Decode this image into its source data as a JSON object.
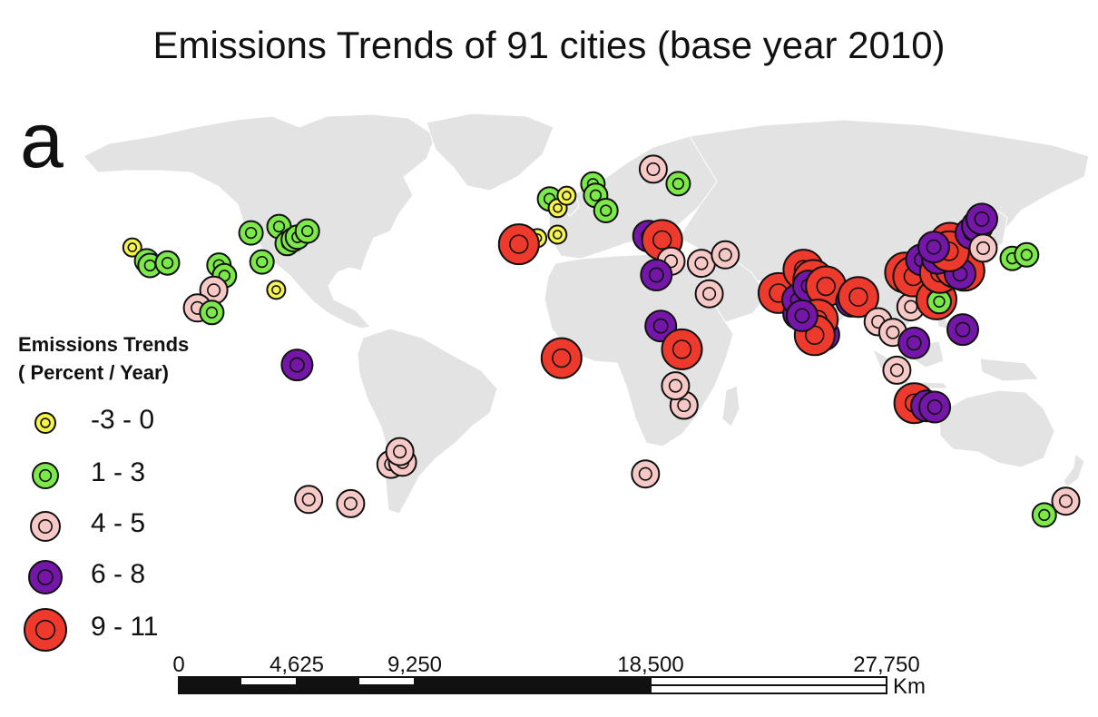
{
  "title": "Emissions Trends of 91 cities (base year 2010)",
  "panel_label": "a",
  "legend": {
    "title_line1": "Emissions Trends",
    "title_line2": "( Percent / Year)",
    "classes": [
      {
        "id": "c1",
        "label": "-3 - 0",
        "color": "#f6f44a"
      },
      {
        "id": "c2",
        "label": "1 - 3",
        "color": "#7de849"
      },
      {
        "id": "c3",
        "label": "4 - 5",
        "color": "#f7c9c6"
      },
      {
        "id": "c4",
        "label": "6 - 8",
        "color": "#7417a8"
      },
      {
        "id": "c5",
        "label": "9 - 11",
        "color": "#ee3a2c"
      }
    ]
  },
  "scale_bar": {
    "unit": "Km",
    "ticks": [
      "0",
      "4,625",
      "9,250",
      "18,500",
      "27,750"
    ]
  },
  "colors": {
    "land": "#e3e3e3",
    "background": "#ffffff",
    "outline": "#111111"
  },
  "cities": [
    {
      "lon": -122.4,
      "lat": 37.8,
      "cls": "c1"
    },
    {
      "lon": -118.2,
      "lat": 34.0,
      "cls": "c2"
    },
    {
      "lon": -117.2,
      "lat": 32.7,
      "cls": "c2"
    },
    {
      "lon": -112.1,
      "lat": 33.4,
      "cls": "c2"
    },
    {
      "lon": -97.0,
      "lat": 32.8,
      "cls": "c2"
    },
    {
      "lon": -95.4,
      "lat": 29.8,
      "cls": "c2"
    },
    {
      "lon": -98.5,
      "lat": 25.7,
      "cls": "c3"
    },
    {
      "lon": -103.3,
      "lat": 20.7,
      "cls": "c3"
    },
    {
      "lon": -99.1,
      "lat": 19.4,
      "cls": "c2"
    },
    {
      "lon": -87.6,
      "lat": 41.9,
      "cls": "c2"
    },
    {
      "lon": -84.4,
      "lat": 33.7,
      "cls": "c2"
    },
    {
      "lon": -80.2,
      "lat": 25.8,
      "cls": "c1"
    },
    {
      "lon": -79.4,
      "lat": 43.7,
      "cls": "c2"
    },
    {
      "lon": -77.0,
      "lat": 38.9,
      "cls": "c2"
    },
    {
      "lon": -75.2,
      "lat": 40.0,
      "cls": "c2"
    },
    {
      "lon": -74.0,
      "lat": 40.7,
      "cls": "c2"
    },
    {
      "lon": -71.1,
      "lat": 42.4,
      "cls": "c2"
    },
    {
      "lon": -74.1,
      "lat": 4.6,
      "cls": "c4"
    },
    {
      "lon": -70.7,
      "lat": -33.4,
      "cls": "c3"
    },
    {
      "lon": -58.4,
      "lat": -34.6,
      "cls": "c3"
    },
    {
      "lon": -46.6,
      "lat": -23.5,
      "cls": "c3"
    },
    {
      "lon": -43.2,
      "lat": -22.9,
      "cls": "c3"
    },
    {
      "lon": -44.0,
      "lat": -19.9,
      "cls": "c3"
    },
    {
      "lon": -0.1,
      "lat": 51.5,
      "cls": "c2"
    },
    {
      "lon": 2.3,
      "lat": 48.9,
      "cls": "c1"
    },
    {
      "lon": 4.9,
      "lat": 52.4,
      "cls": "c1"
    },
    {
      "lon": 12.6,
      "lat": 55.7,
      "cls": "c2"
    },
    {
      "lon": 13.4,
      "lat": 52.5,
      "cls": "c2"
    },
    {
      "lon": 16.4,
      "lat": 48.2,
      "cls": "c2"
    },
    {
      "lon": -3.7,
      "lat": 40.4,
      "cls": "c1"
    },
    {
      "lon": 2.2,
      "lat": 41.4,
      "cls": "c1"
    },
    {
      "lon": -9.1,
      "lat": 38.7,
      "cls": "c5"
    },
    {
      "lon": 30.3,
      "lat": 59.9,
      "cls": "c3"
    },
    {
      "lon": 37.6,
      "lat": 55.8,
      "cls": "c2"
    },
    {
      "lon": 28.9,
      "lat": 41.0,
      "cls": "c4"
    },
    {
      "lon": 32.9,
      "lat": 39.9,
      "cls": "c5"
    },
    {
      "lon": 35.5,
      "lat": 33.9,
      "cls": "c3"
    },
    {
      "lon": 31.2,
      "lat": 30.0,
      "cls": "c4"
    },
    {
      "lon": 44.4,
      "lat": 33.3,
      "cls": "c3"
    },
    {
      "lon": 51.4,
      "lat": 35.7,
      "cls": "c3"
    },
    {
      "lon": 46.7,
      "lat": 24.7,
      "cls": "c3"
    },
    {
      "lon": 32.5,
      "lat": 15.6,
      "cls": "c4"
    },
    {
      "lon": 38.7,
      "lat": 9.0,
      "cls": "c5"
    },
    {
      "lon": 39.3,
      "lat": -6.8,
      "cls": "c3"
    },
    {
      "lon": 36.8,
      "lat": -1.3,
      "cls": "c3"
    },
    {
      "lon": 3.4,
      "lat": 6.5,
      "cls": "c5"
    },
    {
      "lon": 28.0,
      "lat": -26.2,
      "cls": "c3"
    },
    {
      "lon": 67.0,
      "lat": 24.9,
      "cls": "c5"
    },
    {
      "lon": 74.3,
      "lat": 31.5,
      "cls": "c5"
    },
    {
      "lon": 72.9,
      "lat": 19.1,
      "cls": "c4"
    },
    {
      "lon": 72.6,
      "lat": 23.0,
      "cls": "c4"
    },
    {
      "lon": 77.2,
      "lat": 28.6,
      "cls": "c5"
    },
    {
      "lon": 75.8,
      "lat": 26.9,
      "cls": "c4"
    },
    {
      "lon": 80.9,
      "lat": 26.8,
      "cls": "c5"
    },
    {
      "lon": 88.4,
      "lat": 22.6,
      "cls": "c4"
    },
    {
      "lon": 80.3,
      "lat": 13.1,
      "cls": "c4"
    },
    {
      "lon": 78.5,
      "lat": 17.4,
      "cls": "c5"
    },
    {
      "lon": 77.6,
      "lat": 13.0,
      "cls": "c5"
    },
    {
      "lon": 73.9,
      "lat": 18.5,
      "cls": "c4"
    },
    {
      "lon": 90.4,
      "lat": 23.8,
      "cls": "c5"
    },
    {
      "lon": 96.2,
      "lat": 16.8,
      "cls": "c3"
    },
    {
      "lon": 100.5,
      "lat": 13.8,
      "cls": "c3"
    },
    {
      "lon": 106.7,
      "lat": 10.8,
      "cls": "c4"
    },
    {
      "lon": 105.8,
      "lat": 21.0,
      "cls": "c3"
    },
    {
      "lon": 101.7,
      "lat": 3.1,
      "cls": "c3"
    },
    {
      "lon": 106.8,
      "lat": -6.2,
      "cls": "c5"
    },
    {
      "lon": 110.4,
      "lat": -7.0,
      "cls": "c4"
    },
    {
      "lon": 112.8,
      "lat": -7.3,
      "cls": "c4"
    },
    {
      "lon": 121.0,
      "lat": 14.6,
      "cls": "c4"
    },
    {
      "lon": 104.1,
      "lat": 30.7,
      "cls": "c5"
    },
    {
      "lon": 106.5,
      "lat": 29.6,
      "cls": "c5"
    },
    {
      "lon": 108.9,
      "lat": 34.3,
      "cls": "c4"
    },
    {
      "lon": 113.3,
      "lat": 23.1,
      "cls": "c5"
    },
    {
      "lon": 114.1,
      "lat": 22.5,
      "cls": "c2"
    },
    {
      "lon": 114.3,
      "lat": 30.6,
      "cls": "c5"
    },
    {
      "lon": 116.4,
      "lat": 39.9,
      "cls": "c4"
    },
    {
      "lon": 117.2,
      "lat": 39.1,
      "cls": "c5"
    },
    {
      "lon": 118.8,
      "lat": 32.1,
      "cls": "c5"
    },
    {
      "lon": 121.5,
      "lat": 31.2,
      "cls": "c5"
    },
    {
      "lon": 120.2,
      "lat": 30.3,
      "cls": "c4"
    },
    {
      "lon": 113.6,
      "lat": 34.7,
      "cls": "c4"
    },
    {
      "lon": 117.0,
      "lat": 36.7,
      "cls": "c5"
    },
    {
      "lon": 112.5,
      "lat": 37.9,
      "cls": "c4"
    },
    {
      "lon": 123.4,
      "lat": 41.8,
      "cls": "c4"
    },
    {
      "lon": 125.3,
      "lat": 43.9,
      "cls": "c4"
    },
    {
      "lon": 126.6,
      "lat": 45.8,
      "cls": "c4"
    },
    {
      "lon": 127.0,
      "lat": 37.6,
      "cls": "c3"
    },
    {
      "lon": 135.5,
      "lat": 34.7,
      "cls": "c2"
    },
    {
      "lon": 139.7,
      "lat": 35.7,
      "cls": "c2"
    },
    {
      "lon": 144.9,
      "lat": -37.8,
      "cls": "c2"
    },
    {
      "lon": 151.2,
      "lat": -33.9,
      "cls": "c3"
    }
  ]
}
